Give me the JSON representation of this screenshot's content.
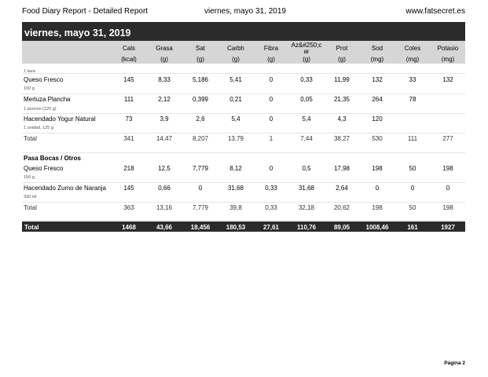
{
  "header": {
    "left": "Food Diary Report - Detailed Report",
    "center": "viernes, mayo 31, 2019",
    "right": "www.fatsecret.es"
  },
  "day_bar": "viernes, mayo 31, 2019",
  "columns": [
    {
      "name": "Cals",
      "unit": "(kcal)"
    },
    {
      "name": "Grasa",
      "unit": "(g)"
    },
    {
      "name": "Sat",
      "unit": "(g)"
    },
    {
      "name": "Carbh",
      "unit": "(g)"
    },
    {
      "name": "Fibra",
      "unit": "(g)"
    },
    {
      "name": "Az&#250;c\nar",
      "unit": "(g)"
    },
    {
      "name": "Prot",
      "unit": "(g)"
    },
    {
      "name": "Sod",
      "unit": "(mg)"
    },
    {
      "name": "Coles",
      "unit": "(mg)"
    },
    {
      "name": "Potasio",
      "unit": "(mg)"
    }
  ],
  "meals": [
    {
      "title": "",
      "top_note": "1 taza",
      "items": [
        {
          "name": "Queso Fresco",
          "portion": "100 g",
          "values": [
            "145",
            "8,33",
            "5,186",
            "5,41",
            "0",
            "0,33",
            "11,99",
            "132",
            "33",
            "132"
          ]
        },
        {
          "name": "Merluza Plancha",
          "portion": "1 porción (120 g)",
          "values": [
            "111",
            "2,12",
            "0,399",
            "0,21",
            "0",
            "0,05",
            "21,35",
            "264",
            "78",
            ""
          ]
        },
        {
          "name": "Hacendado Yogur Natural",
          "portion": "1 unidad, 125 g",
          "values": [
            "73",
            "3,9",
            "2,6",
            "5,4",
            "0",
            "5,4",
            "4,3",
            "120",
            "",
            ""
          ]
        }
      ],
      "total_label": "Total",
      "total_values": [
        "341",
        "14,47",
        "8,207",
        "13,79",
        "1",
        "7,44",
        "38,27",
        "530",
        "111",
        "277"
      ]
    },
    {
      "title": "Pasa Bocas / Otros",
      "top_note": "",
      "items": [
        {
          "name": "Queso Fresco",
          "portion": "150 g",
          "values": [
            "218",
            "12,5",
            "7,779",
            "8,12",
            "0",
            "0,5",
            "17,98",
            "198",
            "50",
            "198"
          ]
        },
        {
          "name": "Hacendado Zumo de Naranja",
          "portion": "330 ml",
          "values": [
            "145",
            "0,66",
            "0",
            "31,68",
            "0,33",
            "31,68",
            "2,64",
            "0",
            "0",
            "0"
          ]
        }
      ],
      "total_label": "Total",
      "total_values": [
        "363",
        "13,16",
        "7,779",
        "39,8",
        "0,33",
        "32,18",
        "20,62",
        "198",
        "50",
        "198"
      ]
    }
  ],
  "grand_total": {
    "label": "Total",
    "values": [
      "1468",
      "43,66",
      "18,456",
      "180,53",
      "27,61",
      "110,76",
      "89,05",
      "1008,46",
      "161",
      "1927"
    ]
  },
  "footer": "Página 2"
}
